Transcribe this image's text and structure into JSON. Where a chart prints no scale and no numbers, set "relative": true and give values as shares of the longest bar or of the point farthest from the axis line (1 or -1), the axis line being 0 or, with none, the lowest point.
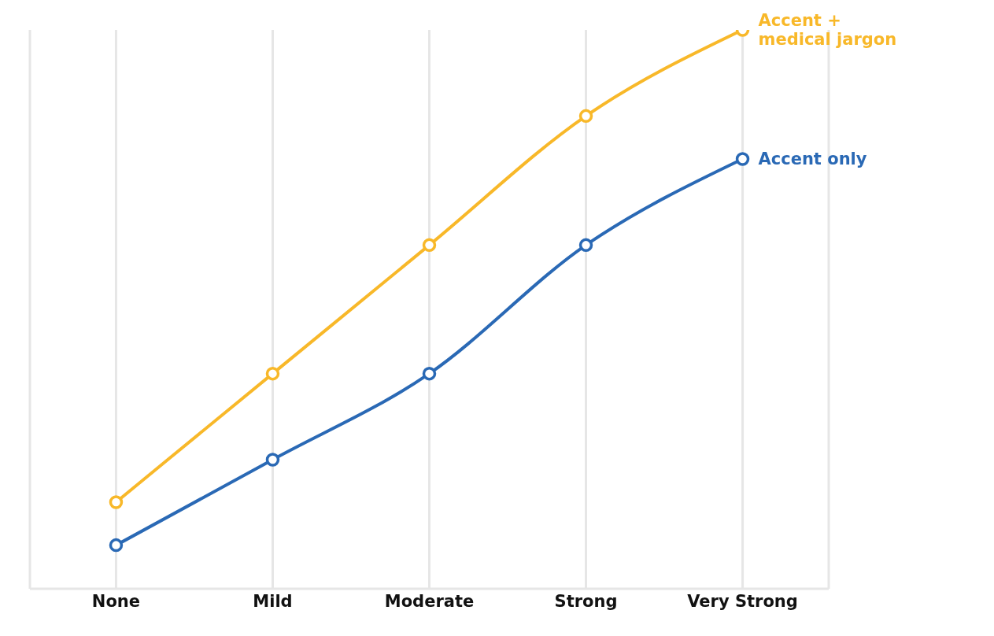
{
  "chart_data": {
    "type": "line",
    "categories": [
      "None",
      "Mild",
      "Moderate",
      "Strong",
      "Very Strong"
    ],
    "relative": true,
    "grid": "x",
    "marker": "circle",
    "line_style": "solid",
    "series": [
      {
        "name": "Accent + medical jargon",
        "color": "#f8b829",
        "values": [
          0.155,
          0.385,
          0.615,
          0.846,
          1
        ]
      },
      {
        "name": "Accent only",
        "color": "#2a69b5",
        "values": [
          0.078,
          0.231,
          0.385,
          0.615,
          0.769
        ]
      }
    ]
  }
}
